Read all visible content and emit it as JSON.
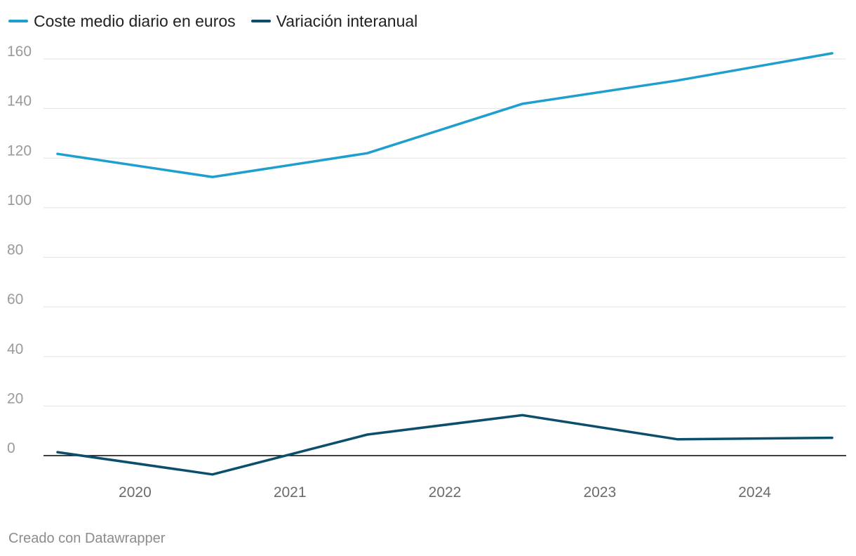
{
  "chart_data": {
    "type": "line",
    "title": "",
    "xlabel": "",
    "ylabel": "",
    "ylim": [
      -10,
      170
    ],
    "y_ticks": [
      0,
      20,
      40,
      60,
      80,
      100,
      120,
      140,
      160
    ],
    "categories": [
      "2020",
      "2021",
      "2022",
      "2023",
      "2024"
    ],
    "x": [
      2019.5,
      2020.5,
      2021.5,
      2022.5,
      2023.5,
      2024.5
    ],
    "series": [
      {
        "name": "Coste medio diario en euros",
        "color": "#1f9fcf",
        "values": [
          121.7,
          112.4,
          122.0,
          141.9,
          151.3,
          162.3
        ]
      },
      {
        "name": "Variación interanual",
        "color": "#0b4f6c",
        "values": [
          1.4,
          -7.6,
          8.5,
          16.3,
          6.6,
          7.2
        ]
      }
    ],
    "legend": "top-left",
    "grid": true
  },
  "footer": {
    "credit": "Creado con Datawrapper"
  }
}
